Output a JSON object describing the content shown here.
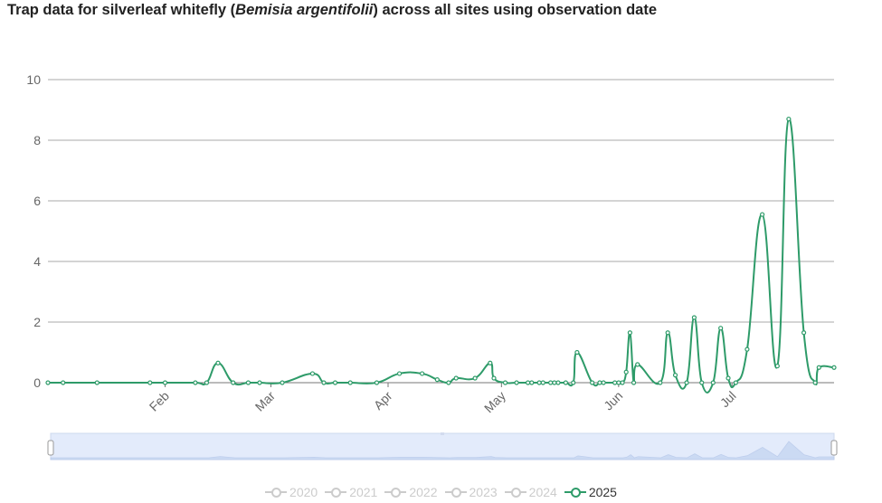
{
  "page": {
    "title_prefix": "Trap data for silverleaf whitefly (",
    "title_species": "Bemisia argentifolii",
    "title_suffix": ") across all sites using observation date"
  },
  "legend": {
    "items": [
      {
        "label": "2020",
        "active": false
      },
      {
        "label": "2021",
        "active": false
      },
      {
        "label": "2022",
        "active": false
      },
      {
        "label": "2023",
        "active": false
      },
      {
        "label": "2024",
        "active": false
      },
      {
        "label": "2025",
        "active": true
      }
    ]
  },
  "colors": {
    "series": "#2e9b69",
    "inactive": "#cccccc",
    "grid": "#aaaaaa",
    "zoom_fill": "#e3ebfb",
    "zoom_border": "#cdd8ee",
    "zoom_shadow": "#c6d6f2"
  },
  "chart_data": {
    "type": "line",
    "title": "Trap data for silverleaf whitefly (Bemisia argentifolii) across all sites using observation date",
    "xlabel": "",
    "ylabel": "",
    "ylim": [
      0,
      10
    ],
    "yticks": [
      0,
      2,
      4,
      6,
      8,
      10
    ],
    "xlim": [
      "2025-01-01",
      "2025-07-28"
    ],
    "xticks": [
      {
        "label": "Feb",
        "date": "2025-02-01"
      },
      {
        "label": "Mar",
        "date": "2025-03-01"
      },
      {
        "label": "Apr",
        "date": "2025-04-01"
      },
      {
        "label": "May",
        "date": "2025-05-01"
      },
      {
        "label": "Jun",
        "date": "2025-06-01"
      },
      {
        "label": "Jul",
        "date": "2025-07-01"
      }
    ],
    "grid": true,
    "smooth": true,
    "legend_position": "bottom",
    "series": [
      {
        "name": "2025",
        "x": [
          "2025-01-01",
          "2025-01-05",
          "2025-01-14",
          "2025-01-28",
          "2025-02-01",
          "2025-02-09",
          "2025-02-12",
          "2025-02-15",
          "2025-02-19",
          "2025-02-23",
          "2025-02-26",
          "2025-03-04",
          "2025-03-12",
          "2025-03-15",
          "2025-03-18",
          "2025-03-22",
          "2025-03-29",
          "2025-04-04",
          "2025-04-10",
          "2025-04-14",
          "2025-04-17",
          "2025-04-19",
          "2025-04-24",
          "2025-04-28",
          "2025-04-29",
          "2025-05-02",
          "2025-05-05",
          "2025-05-08",
          "2025-05-09",
          "2025-05-11",
          "2025-05-12",
          "2025-05-14",
          "2025-05-15",
          "2025-05-16",
          "2025-05-18",
          "2025-05-20",
          "2025-05-21",
          "2025-05-25",
          "2025-05-27",
          "2025-05-28",
          "2025-05-31",
          "2025-06-01",
          "2025-06-02",
          "2025-06-03",
          "2025-06-04",
          "2025-06-05",
          "2025-06-06",
          "2025-06-12",
          "2025-06-14",
          "2025-06-16",
          "2025-06-19",
          "2025-06-21",
          "2025-06-23",
          "2025-06-26",
          "2025-06-28",
          "2025-06-30",
          "2025-07-02",
          "2025-07-05",
          "2025-07-09",
          "2025-07-13",
          "2025-07-16",
          "2025-07-20",
          "2025-07-23",
          "2025-07-24",
          "2025-07-28"
        ],
        "y": [
          0,
          0,
          0,
          0,
          0,
          0,
          0,
          0.65,
          0,
          0,
          0,
          0,
          0.3,
          0,
          0,
          0,
          0,
          0.3,
          0.3,
          0.1,
          0,
          0.15,
          0.15,
          0.65,
          0.15,
          0,
          0,
          0,
          0,
          0,
          0,
          0,
          0,
          0,
          0,
          0,
          1.0,
          0,
          0,
          0,
          0,
          0,
          0,
          0.35,
          1.65,
          0,
          0.6,
          0,
          1.65,
          0.25,
          0,
          2.15,
          0,
          0,
          1.8,
          0.15,
          0,
          1.1,
          5.55,
          0.55,
          8.7,
          1.65,
          0,
          0.5,
          0.5
        ]
      }
    ]
  }
}
